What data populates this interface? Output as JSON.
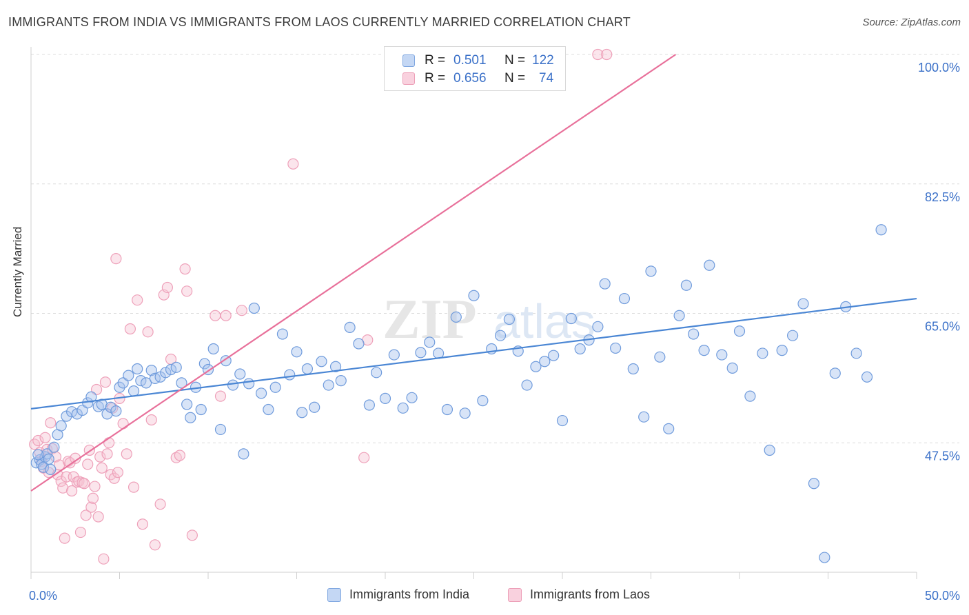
{
  "title": "IMMIGRANTS FROM INDIA VS IMMIGRANTS FROM LAOS CURRENTLY MARRIED CORRELATION CHART",
  "source": "Source: ZipAtlas.com",
  "watermark": {
    "zip": "ZIP",
    "atlas": "atlas"
  },
  "legend_top": {
    "rows": [
      {
        "r_label": "R =",
        "r_value": "0.501",
        "n_label": "N =",
        "n_value": "122",
        "color": "#a9c4ee"
      },
      {
        "r_label": "R =",
        "r_value": "0.656",
        "n_label": "N =",
        "n_value": "74",
        "color": "#f5b6c9"
      }
    ]
  },
  "legend_bottom": [
    {
      "label": "Immigrants from India",
      "color": "#a9c4ee",
      "stroke": "#5b8fd8"
    },
    {
      "label": "Immigrants from Laos",
      "color": "#f7c5d4",
      "stroke": "#e0789b"
    }
  ],
  "chart_data": {
    "type": "scatter",
    "title": "IMMIGRANTS FROM INDIA VS IMMIGRANTS FROM LAOS CURRENTLY MARRIED CORRELATION CHART",
    "xlabel": "",
    "ylabel": "Currently Married",
    "xlim": [
      0,
      50
    ],
    "ylim": [
      30,
      100
    ],
    "x_tick_labels": [
      "0.0%",
      "50.0%"
    ],
    "y_ticks": [
      47.5,
      65.0,
      82.5,
      100.0
    ],
    "y_tick_labels": [
      "47.5%",
      "65.0%",
      "82.5%",
      "100.0%"
    ],
    "grid": true,
    "legend_position": "top-center",
    "colors": {
      "india": "#4a86d4",
      "laos": "#e8709a",
      "india_fill": "#a9c4ee",
      "laos_fill": "#f7c5d4",
      "tick_text": "#3a70c8"
    },
    "series": [
      {
        "name": "Immigrants from India",
        "trend": {
          "x": [
            0,
            50
          ],
          "y": [
            52.1,
            67.0
          ]
        },
        "points": [
          [
            0.3,
            44.8
          ],
          [
            0.5,
            45.2
          ],
          [
            0.6,
            44.6
          ],
          [
            0.8,
            45.6
          ],
          [
            0.7,
            44.2
          ],
          [
            0.9,
            46.0
          ],
          [
            1.0,
            45.3
          ],
          [
            0.4,
            45.9
          ],
          [
            1.1,
            43.9
          ],
          [
            1.3,
            46.9
          ],
          [
            1.5,
            48.6
          ],
          [
            1.7,
            49.8
          ],
          [
            2.0,
            51.1
          ],
          [
            2.3,
            51.7
          ],
          [
            2.6,
            51.4
          ],
          [
            2.9,
            51.9
          ],
          [
            3.2,
            52.9
          ],
          [
            3.4,
            53.7
          ],
          [
            3.8,
            52.4
          ],
          [
            4.0,
            52.7
          ],
          [
            4.3,
            51.4
          ],
          [
            4.5,
            52.3
          ],
          [
            4.8,
            51.8
          ],
          [
            5.0,
            55.0
          ],
          [
            5.2,
            55.6
          ],
          [
            5.5,
            56.6
          ],
          [
            5.8,
            54.5
          ],
          [
            6.0,
            57.5
          ],
          [
            6.2,
            55.9
          ],
          [
            6.5,
            55.6
          ],
          [
            6.8,
            57.3
          ],
          [
            7.0,
            56.2
          ],
          [
            7.3,
            56.4
          ],
          [
            7.6,
            57.0
          ],
          [
            7.9,
            57.4
          ],
          [
            8.2,
            57.7
          ],
          [
            8.5,
            55.6
          ],
          [
            8.8,
            52.7
          ],
          [
            9.0,
            50.9
          ],
          [
            9.3,
            55.0
          ],
          [
            9.6,
            52.0
          ],
          [
            9.8,
            58.2
          ],
          [
            10.0,
            57.4
          ],
          [
            10.3,
            60.2
          ],
          [
            10.7,
            49.3
          ],
          [
            11.0,
            58.6
          ],
          [
            11.4,
            55.3
          ],
          [
            11.8,
            56.8
          ],
          [
            12.0,
            46.0
          ],
          [
            12.3,
            55.5
          ],
          [
            12.6,
            65.7
          ],
          [
            13.0,
            54.2
          ],
          [
            13.4,
            52.0
          ],
          [
            13.8,
            55.0
          ],
          [
            14.2,
            62.2
          ],
          [
            14.6,
            56.7
          ],
          [
            15.0,
            59.8
          ],
          [
            15.3,
            51.6
          ],
          [
            15.6,
            57.5
          ],
          [
            16.0,
            52.3
          ],
          [
            16.4,
            58.5
          ],
          [
            16.8,
            55.3
          ],
          [
            17.2,
            57.8
          ],
          [
            17.5,
            55.9
          ],
          [
            18.0,
            63.1
          ],
          [
            18.5,
            60.9
          ],
          [
            19.1,
            52.6
          ],
          [
            19.5,
            57.0
          ],
          [
            20.0,
            53.5
          ],
          [
            20.5,
            59.4
          ],
          [
            21.0,
            52.2
          ],
          [
            21.5,
            53.6
          ],
          [
            22.0,
            59.7
          ],
          [
            22.5,
            61.1
          ],
          [
            23.0,
            59.6
          ],
          [
            23.5,
            52.0
          ],
          [
            24.0,
            64.5
          ],
          [
            24.5,
            51.5
          ],
          [
            25.0,
            67.4
          ],
          [
            25.5,
            53.2
          ],
          [
            26.0,
            60.2
          ],
          [
            26.5,
            62.0
          ],
          [
            27.0,
            64.2
          ],
          [
            27.5,
            59.9
          ],
          [
            28.0,
            55.3
          ],
          [
            28.5,
            57.8
          ],
          [
            29.0,
            58.5
          ],
          [
            29.5,
            59.3
          ],
          [
            30.0,
            50.5
          ],
          [
            30.5,
            64.3
          ],
          [
            31.0,
            60.2
          ],
          [
            31.5,
            61.4
          ],
          [
            32.0,
            63.2
          ],
          [
            32.4,
            69.0
          ],
          [
            33.0,
            60.3
          ],
          [
            33.5,
            67.0
          ],
          [
            34.0,
            57.5
          ],
          [
            34.6,
            51.0
          ],
          [
            35.0,
            70.7
          ],
          [
            35.5,
            59.1
          ],
          [
            36.0,
            49.4
          ],
          [
            36.6,
            64.7
          ],
          [
            37.0,
            68.8
          ],
          [
            37.4,
            62.2
          ],
          [
            38.0,
            60.0
          ],
          [
            38.3,
            71.5
          ],
          [
            39.0,
            59.4
          ],
          [
            39.6,
            57.6
          ],
          [
            40.0,
            62.6
          ],
          [
            40.6,
            53.8
          ],
          [
            41.3,
            59.6
          ],
          [
            41.7,
            46.5
          ],
          [
            42.4,
            60.0
          ],
          [
            43.0,
            62.0
          ],
          [
            43.6,
            66.3
          ],
          [
            44.2,
            42.0
          ],
          [
            44.8,
            32.0
          ],
          [
            45.4,
            56.9
          ],
          [
            46.0,
            65.9
          ],
          [
            46.6,
            59.6
          ],
          [
            47.2,
            56.4
          ],
          [
            48.0,
            76.3
          ]
        ]
      },
      {
        "name": "Immigrants from Laos",
        "trend": {
          "x": [
            0,
            36.4
          ],
          "y": [
            41.0,
            100.0
          ]
        },
        "points": [
          [
            0.2,
            47.3
          ],
          [
            0.4,
            47.8
          ],
          [
            0.5,
            46.2
          ],
          [
            0.6,
            45.0
          ],
          [
            0.7,
            44.1
          ],
          [
            0.8,
            48.2
          ],
          [
            0.9,
            46.6
          ],
          [
            1.0,
            43.5
          ],
          [
            1.1,
            50.2
          ],
          [
            1.2,
            46.7
          ],
          [
            1.4,
            45.6
          ],
          [
            1.5,
            43.2
          ],
          [
            1.6,
            44.5
          ],
          [
            1.7,
            42.3
          ],
          [
            1.8,
            41.4
          ],
          [
            1.9,
            34.6
          ],
          [
            2.0,
            42.9
          ],
          [
            2.1,
            45.0
          ],
          [
            2.2,
            44.8
          ],
          [
            2.3,
            41.0
          ],
          [
            2.4,
            42.9
          ],
          [
            2.5,
            45.4
          ],
          [
            2.6,
            42.2
          ],
          [
            2.7,
            42.3
          ],
          [
            2.8,
            35.4
          ],
          [
            2.9,
            42.1
          ],
          [
            3.0,
            42.0
          ],
          [
            3.1,
            37.7
          ],
          [
            3.2,
            44.6
          ],
          [
            3.3,
            46.5
          ],
          [
            3.4,
            38.8
          ],
          [
            3.5,
            40.0
          ],
          [
            3.6,
            41.6
          ],
          [
            3.7,
            54.7
          ],
          [
            3.8,
            37.5
          ],
          [
            3.9,
            45.6
          ],
          [
            4.0,
            44.1
          ],
          [
            4.1,
            31.8
          ],
          [
            4.2,
            55.7
          ],
          [
            4.3,
            46.0
          ],
          [
            4.4,
            47.5
          ],
          [
            4.5,
            43.2
          ],
          [
            4.6,
            52.2
          ],
          [
            4.7,
            42.7
          ],
          [
            4.8,
            72.4
          ],
          [
            4.9,
            43.5
          ],
          [
            5.0,
            53.5
          ],
          [
            5.2,
            50.1
          ],
          [
            5.4,
            46.0
          ],
          [
            5.6,
            62.9
          ],
          [
            5.8,
            41.5
          ],
          [
            6.0,
            66.8
          ],
          [
            6.3,
            36.5
          ],
          [
            6.6,
            62.5
          ],
          [
            6.8,
            50.6
          ],
          [
            7.0,
            33.7
          ],
          [
            7.3,
            39.2
          ],
          [
            7.5,
            67.5
          ],
          [
            7.7,
            68.5
          ],
          [
            7.9,
            58.8
          ],
          [
            8.2,
            45.5
          ],
          [
            8.4,
            45.8
          ],
          [
            8.7,
            71.0
          ],
          [
            8.8,
            68.0
          ],
          [
            9.1,
            35.0
          ],
          [
            10.4,
            64.7
          ],
          [
            10.7,
            53.8
          ],
          [
            11.0,
            64.7
          ],
          [
            11.9,
            65.4
          ],
          [
            14.8,
            85.2
          ],
          [
            18.8,
            45.5
          ],
          [
            19.0,
            61.4
          ],
          [
            32.0,
            100.0
          ],
          [
            32.5,
            100.0
          ]
        ]
      }
    ]
  }
}
